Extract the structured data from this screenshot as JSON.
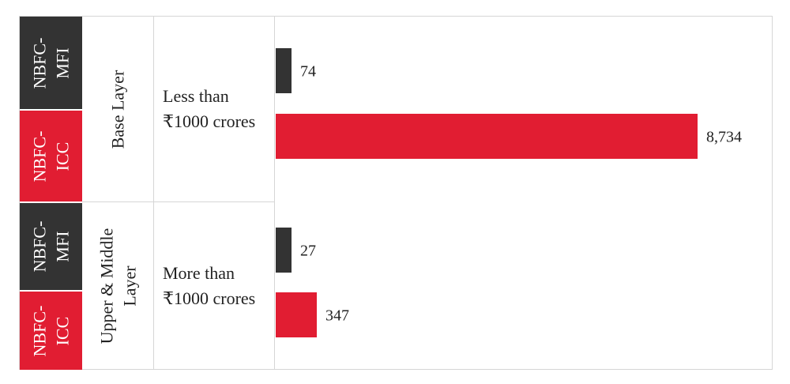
{
  "colors": {
    "mfi": "#333333",
    "icc": "#e11d32",
    "grid": "#d6d6d6"
  },
  "rows": [
    {
      "layer": "Base Layer",
      "size": [
        "Less than",
        "₹1000 crores"
      ],
      "types": [
        {
          "label": [
            "NBFC-",
            "MFI"
          ],
          "color": "mfi"
        },
        {
          "label": [
            "NBFC-",
            "ICC"
          ],
          "color": "icc"
        }
      ]
    },
    {
      "layer": [
        "Upper & Middle",
        "Layer"
      ],
      "size": [
        "More than",
        "₹1000 crores"
      ],
      "types": [
        {
          "label": [
            "NBFC-",
            "MFI"
          ],
          "color": "mfi"
        },
        {
          "label": [
            "NBFC-",
            "ICC"
          ],
          "color": "icc"
        }
      ]
    }
  ],
  "chart_data": {
    "type": "bar",
    "orientation": "horizontal",
    "categories": [
      "Base Layer NBFC-MFI",
      "Base Layer NBFC-ICC",
      "Upper & Middle Layer NBFC-MFI",
      "Upper & Middle Layer NBFC-ICC"
    ],
    "values": [
      74,
      8734,
      27,
      347
    ],
    "value_labels": [
      "74",
      "8,734",
      "27",
      "347"
    ],
    "bar_colors": [
      "mfi",
      "icc",
      "mfi",
      "icc"
    ],
    "xlim": [
      0,
      8734
    ],
    "grid": false,
    "scale": "non-linear (bars not drawn to a common linear scale)"
  }
}
